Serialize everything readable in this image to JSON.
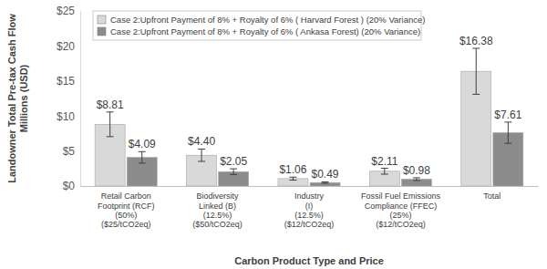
{
  "chart_data": {
    "type": "bar",
    "x_label": "Carbon Product Type and Price",
    "y_label": "Landowner Total Pre-tax Cash Flow\nMillions (USD)",
    "categories": [
      "Retail Carbon\nFootprint (RCF)\n(50%)\n($25/tCO2eq)",
      "Biodiversity\nLinked (B)\n(12.5%)\n($50/tCO2eq)",
      "Industry\n(I)\n(12.5%)\n($12/tCO2eq)",
      "Fossil Fuel Emissions\nCompliance (FFEC)\n(25%)\n($12/tCO2eq)",
      "Total"
    ],
    "series": [
      {
        "name": "Case 2:Upfront Payment of 8% + Royalty of 6% ( Harvard Forest ) (20% Variance)",
        "color": "#d9d9d9",
        "values": [
          8.81,
          4.4,
          1.06,
          2.11,
          16.38
        ],
        "value_labels": [
          "$8.81",
          "$4.40",
          "$1.06",
          "$2.11",
          "$16.38"
        ],
        "errors": [
          1.76,
          0.88,
          0.21,
          0.42,
          3.28
        ]
      },
      {
        "name": "Case 2:Upfront Payment of 8% + Royalty of 6% ( Ankasa Forest) (20% Variance)",
        "color": "#8c8c8c",
        "values": [
          4.09,
          2.05,
          0.49,
          0.98,
          7.61
        ],
        "value_labels": [
          "$4.09",
          "$2.05",
          "$0.49",
          "$0.98",
          "$7.61"
        ],
        "errors": [
          0.82,
          0.41,
          0.1,
          0.2,
          1.52
        ]
      }
    ],
    "ylim": [
      0,
      25
    ],
    "yticks": [
      {
        "value": 0,
        "label": "$0"
      },
      {
        "value": 5,
        "label": "$5"
      },
      {
        "value": 10,
        "label": "$10"
      },
      {
        "value": 15,
        "label": "$15"
      },
      {
        "value": 20,
        "label": "$20"
      },
      {
        "value": 25,
        "label": "$25"
      }
    ],
    "grid": false,
    "legend": "upper left",
    "data_labels": true
  }
}
